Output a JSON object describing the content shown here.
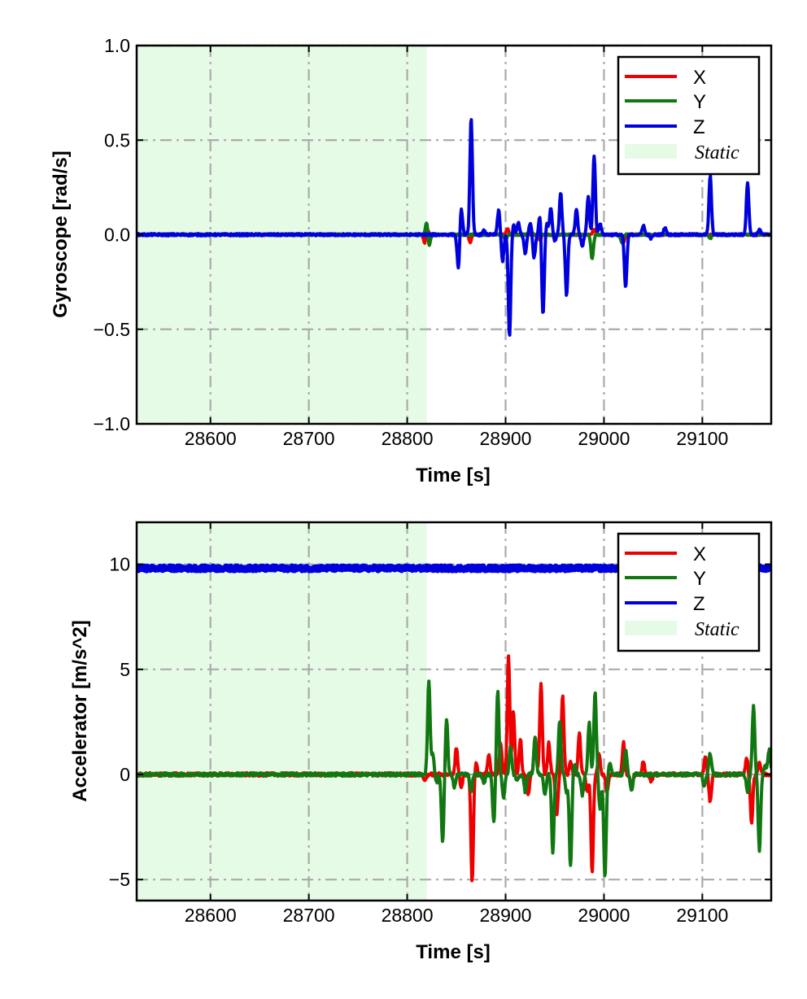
{
  "chart_data": [
    {
      "type": "line",
      "xlabel": "Time [s]",
      "ylabel": "Gyroscope [rad/s]",
      "xlim": [
        28525,
        29170
      ],
      "ylim": [
        -1.0,
        1.0
      ],
      "xticks": [
        28600,
        28700,
        28800,
        28900,
        29000,
        29100
      ],
      "xtick_labels": [
        "28600",
        "28700",
        "28800",
        "28900",
        "29000",
        "29100"
      ],
      "yticks": [
        -1.0,
        -0.5,
        0.0,
        0.5,
        1.0
      ],
      "ytick_labels": [
        "−1.0",
        "−0.5",
        "0.0",
        "0.5",
        "1.0"
      ],
      "grid": true,
      "legend_position": "top-right",
      "static_region": {
        "label": "Static",
        "x0": 28525,
        "x1": 28820,
        "color": "#e6fbe6"
      },
      "series": [
        {
          "name": "X",
          "color": "#ee0000",
          "baseline": 0.0,
          "events": [
            [
              28818,
              -0.05
            ],
            [
              28820,
              0.04
            ],
            [
              28864,
              -0.04
            ],
            [
              28902,
              0.03
            ],
            [
              28935,
              -0.03
            ],
            [
              28990,
              0.03
            ],
            [
              29020,
              -0.04
            ]
          ]
        },
        {
          "name": "Y",
          "color": "#117711",
          "baseline": 0.0,
          "events": [
            [
              28820,
              0.08
            ],
            [
              28822,
              -0.07
            ],
            [
              28900,
              -0.03
            ],
            [
              28925,
              0.05
            ],
            [
              28988,
              -0.13
            ],
            [
              29018,
              -0.04
            ],
            [
              29108,
              -0.02
            ]
          ]
        },
        {
          "name": "Z",
          "color": "#0000dd",
          "baseline": 0.0,
          "events": [
            [
              28852,
              -0.18
            ],
            [
              28855,
              0.14
            ],
            [
              28865,
              0.62
            ],
            [
              28878,
              0.02
            ],
            [
              28893,
              0.13
            ],
            [
              28897,
              -0.14
            ],
            [
              28904,
              -0.54
            ],
            [
              28908,
              0.05
            ],
            [
              28913,
              0.06
            ],
            [
              28920,
              -0.1
            ],
            [
              28925,
              0.06
            ],
            [
              28929,
              -0.12
            ],
            [
              28935,
              0.11
            ],
            [
              28938,
              -0.43
            ],
            [
              28942,
              0.06
            ],
            [
              28946,
              0.14
            ],
            [
              28950,
              -0.03
            ],
            [
              28956,
              0.22
            ],
            [
              28962,
              -0.32
            ],
            [
              28972,
              0.13
            ],
            [
              28978,
              -0.06
            ],
            [
              28984,
              0.2
            ],
            [
              28990,
              0.42
            ],
            [
              28996,
              0.06
            ],
            [
              29022,
              -0.28
            ],
            [
              29040,
              0.05
            ],
            [
              29048,
              -0.02
            ],
            [
              29062,
              0.04
            ],
            [
              29108,
              0.31
            ],
            [
              29146,
              0.28
            ],
            [
              29158,
              0.03
            ]
          ]
        }
      ]
    },
    {
      "type": "line",
      "xlabel": "Time [s]",
      "ylabel": "Accelerator [m/s^2]",
      "xlim": [
        28525,
        29170
      ],
      "ylim": [
        -6,
        12
      ],
      "xticks": [
        28600,
        28700,
        28800,
        28900,
        29000,
        29100
      ],
      "xtick_labels": [
        "28600",
        "28700",
        "28800",
        "28900",
        "29000",
        "29100"
      ],
      "yticks": [
        -5,
        0,
        5,
        10
      ],
      "ytick_labels": [
        "−5",
        "0",
        "5",
        "10"
      ],
      "grid": true,
      "legend_position": "top-right",
      "static_region": {
        "label": "Static",
        "x0": 28525,
        "x1": 28820,
        "color": "#e6fbe6"
      },
      "series": [
        {
          "name": "X",
          "color": "#ee0000",
          "baseline": 0.0,
          "events": [
            [
              28818,
              -0.3
            ],
            [
              28850,
              1.3
            ],
            [
              28855,
              -0.6
            ],
            [
              28866,
              -5.1
            ],
            [
              28870,
              0.6
            ],
            [
              28883,
              1.0
            ],
            [
              28895,
              1.5
            ],
            [
              28903,
              5.6
            ],
            [
              28908,
              3.0
            ],
            [
              28915,
              1.7
            ],
            [
              28923,
              -1.0
            ],
            [
              28930,
              1.8
            ],
            [
              28936,
              4.4
            ],
            [
              28944,
              1.5
            ],
            [
              28952,
              -2.0
            ],
            [
              28958,
              3.8
            ],
            [
              28966,
              0.6
            ],
            [
              28975,
              2.0
            ],
            [
              28983,
              -0.8
            ],
            [
              28988,
              -4.7
            ],
            [
              28995,
              1.0
            ],
            [
              29003,
              -0.8
            ],
            [
              29020,
              1.5
            ],
            [
              29028,
              -0.7
            ],
            [
              29040,
              0.6
            ],
            [
              29048,
              -0.3
            ],
            [
              29103,
              0.8
            ],
            [
              29108,
              -1.3
            ],
            [
              29145,
              0.8
            ],
            [
              29150,
              -2.3
            ],
            [
              29158,
              0.6
            ]
          ]
        },
        {
          "name": "Y",
          "color": "#117711",
          "baseline": 0.0,
          "events": [
            [
              28822,
              4.5
            ],
            [
              28826,
              1.0
            ],
            [
              28830,
              -0.4
            ],
            [
              28836,
              -3.2
            ],
            [
              28840,
              2.6
            ],
            [
              28848,
              -0.6
            ],
            [
              28865,
              -0.8
            ],
            [
              28878,
              -0.4
            ],
            [
              28888,
              -2.3
            ],
            [
              28892,
              4.0
            ],
            [
              28898,
              -1.1
            ],
            [
              28905,
              1.3
            ],
            [
              28912,
              -0.3
            ],
            [
              28920,
              -0.8
            ],
            [
              28930,
              1.8
            ],
            [
              28940,
              -1.0
            ],
            [
              28948,
              -3.7
            ],
            [
              28955,
              2.6
            ],
            [
              28962,
              -0.8
            ],
            [
              28966,
              -4.4
            ],
            [
              28970,
              0.5
            ],
            [
              28978,
              -1.0
            ],
            [
              28985,
              2.5
            ],
            [
              28991,
              3.9
            ],
            [
              28996,
              -1.6
            ],
            [
              29001,
              -4.9
            ],
            [
              29006,
              0.5
            ],
            [
              29022,
              1.2
            ],
            [
              29028,
              -0.8
            ],
            [
              29102,
              -0.6
            ],
            [
              29108,
              1.0
            ],
            [
              29146,
              -0.8
            ],
            [
              29152,
              3.2
            ],
            [
              29158,
              -3.6
            ],
            [
              29164,
              0.4
            ],
            [
              29168,
              1.2
            ]
          ]
        },
        {
          "name": "Z",
          "color": "#0000dd",
          "baseline": 9.81,
          "events": []
        }
      ]
    }
  ]
}
